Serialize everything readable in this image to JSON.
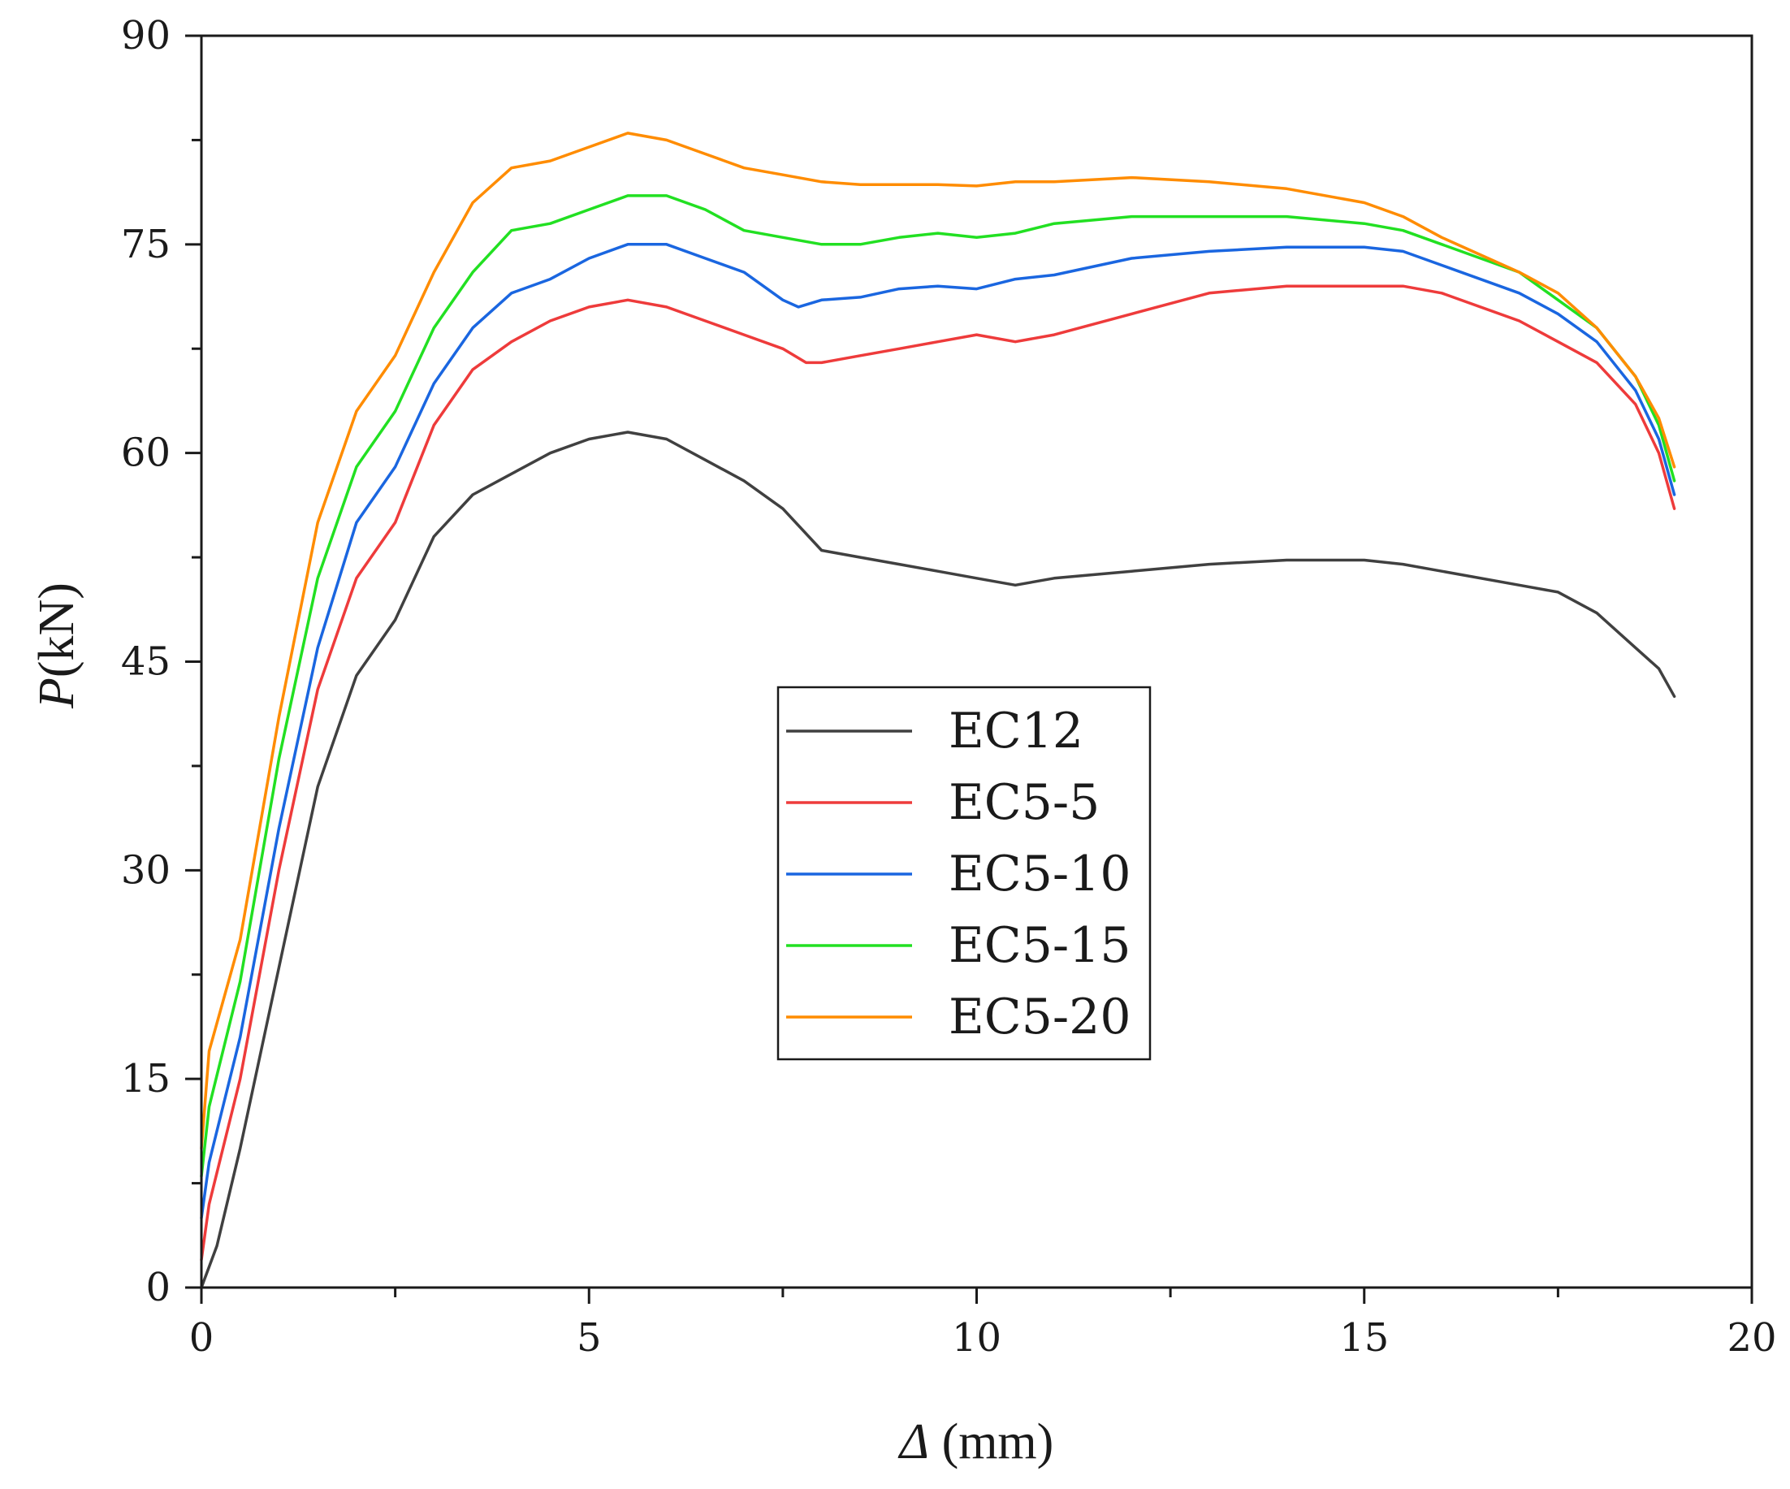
{
  "chart_data": {
    "type": "line",
    "xlabel_symbol": "Δ",
    "xlabel_unit": " (mm)",
    "ylabel_symbol": "P",
    "ylabel_unit": "(kN)",
    "xlim": [
      0,
      20
    ],
    "ylim": [
      0,
      90
    ],
    "x_major_ticks": [
      0,
      5,
      10,
      15,
      20
    ],
    "x_tick_labels": [
      "0",
      "5",
      "10",
      "15",
      "20"
    ],
    "y_major_ticks": [
      0,
      15,
      30,
      45,
      60,
      75,
      90
    ],
    "y_tick_labels": [
      "0",
      "15",
      "30",
      "45",
      "60",
      "75",
      "90"
    ],
    "grid": false,
    "legend_position": "center",
    "series": [
      {
        "name": "EC12",
        "color": "#404040",
        "x": [
          0,
          0.2,
          0.5,
          1.0,
          1.5,
          2.0,
          2.5,
          3.0,
          3.5,
          4.0,
          4.5,
          5.0,
          5.5,
          6.0,
          6.5,
          7.0,
          7.5,
          8.0,
          8.5,
          9.0,
          9.5,
          10.0,
          10.5,
          11.0,
          12.0,
          13.0,
          14.0,
          15.0,
          15.5,
          16.0,
          17.0,
          17.5,
          18.0,
          18.5,
          18.8,
          19.0
        ],
        "values": [
          0,
          3,
          10,
          23,
          36,
          44,
          48,
          54,
          57,
          58.5,
          60,
          61,
          61.5,
          61,
          59.5,
          58,
          56,
          53,
          52.5,
          52,
          51.5,
          51,
          50.5,
          51,
          51.5,
          52,
          52.3,
          52.3,
          52,
          51.5,
          50.5,
          50,
          48.5,
          46,
          44.5,
          42.5
        ]
      },
      {
        "name": "EC5-5",
        "color": "#ee3b3b",
        "x": [
          0,
          0.1,
          0.5,
          1.0,
          1.5,
          2.0,
          2.5,
          3.0,
          3.5,
          4.0,
          4.5,
          5.0,
          5.5,
          6.0,
          6.5,
          7.0,
          7.5,
          7.8,
          8.0,
          8.5,
          9.0,
          9.5,
          10.0,
          10.5,
          11.0,
          12.0,
          13.0,
          14.0,
          15.0,
          15.5,
          16.0,
          17.0,
          17.5,
          18.0,
          18.5,
          18.8,
          19.0
        ],
        "values": [
          2,
          6,
          15,
          30,
          43,
          51,
          55,
          62,
          66,
          68,
          69.5,
          70.5,
          71,
          70.5,
          69.5,
          68.5,
          67.5,
          66.5,
          66.5,
          67,
          67.5,
          68,
          68.5,
          68,
          68.5,
          70,
          71.5,
          72,
          72,
          72,
          71.5,
          69.5,
          68,
          66.5,
          63.5,
          60,
          56
        ]
      },
      {
        "name": "EC5-10",
        "color": "#1a66e0",
        "x": [
          0,
          0.1,
          0.5,
          1.0,
          1.5,
          2.0,
          2.5,
          3.0,
          3.5,
          4.0,
          4.5,
          5.0,
          5.5,
          6.0,
          6.5,
          7.0,
          7.5,
          7.7,
          8.0,
          8.5,
          9.0,
          9.5,
          10.0,
          10.5,
          11.0,
          12.0,
          13.0,
          14.0,
          15.0,
          15.5,
          16.0,
          17.0,
          17.5,
          18.0,
          18.5,
          18.8,
          19.0
        ],
        "values": [
          5,
          9,
          18,
          33,
          46,
          55,
          59,
          65,
          69,
          71.5,
          72.5,
          74,
          75,
          75,
          74,
          73,
          71,
          70.5,
          71,
          71.2,
          71.8,
          72,
          71.8,
          72.5,
          72.8,
          74,
          74.5,
          74.8,
          74.8,
          74.5,
          73.5,
          71.5,
          70,
          68,
          64.5,
          61,
          57
        ]
      },
      {
        "name": "EC5-15",
        "color": "#22e022",
        "x": [
          0,
          0.1,
          0.5,
          1.0,
          1.5,
          2.0,
          2.5,
          3.0,
          3.5,
          4.0,
          4.5,
          5.0,
          5.5,
          6.0,
          6.5,
          7.0,
          7.5,
          8.0,
          8.5,
          9.0,
          9.5,
          10.0,
          10.5,
          11.0,
          12.0,
          13.0,
          14.0,
          15.0,
          15.5,
          16.0,
          17.0,
          17.5,
          18.0,
          18.5,
          18.8,
          19.0
        ],
        "values": [
          8,
          13,
          22,
          38,
          51,
          59,
          63,
          69,
          73,
          76,
          76.5,
          77.5,
          78.5,
          78.5,
          77.5,
          76,
          75.5,
          75,
          75,
          75.5,
          75.8,
          75.5,
          75.8,
          76.5,
          77,
          77,
          77,
          76.5,
          76,
          75,
          73,
          71,
          69,
          65.5,
          62,
          58
        ]
      },
      {
        "name": "EC5-20",
        "color": "#ff8c00",
        "x": [
          0,
          0.1,
          0.5,
          1.0,
          1.5,
          2.0,
          2.5,
          3.0,
          3.5,
          4.0,
          4.5,
          5.0,
          5.5,
          6.0,
          6.5,
          7.0,
          7.5,
          8.0,
          8.5,
          9.0,
          9.5,
          10.0,
          10.5,
          11.0,
          12.0,
          13.0,
          14.0,
          15.0,
          15.5,
          16.0,
          17.0,
          17.5,
          18.0,
          18.5,
          18.8,
          19.0
        ],
        "values": [
          10,
          17,
          25,
          41,
          55,
          63,
          67,
          73,
          78,
          80.5,
          81,
          82,
          83,
          82.5,
          81.5,
          80.5,
          80,
          79.5,
          79.3,
          79.3,
          79.3,
          79.2,
          79.5,
          79.5,
          79.8,
          79.5,
          79,
          78,
          77,
          75.5,
          73,
          71.5,
          69,
          65.5,
          62.5,
          59
        ]
      }
    ]
  }
}
